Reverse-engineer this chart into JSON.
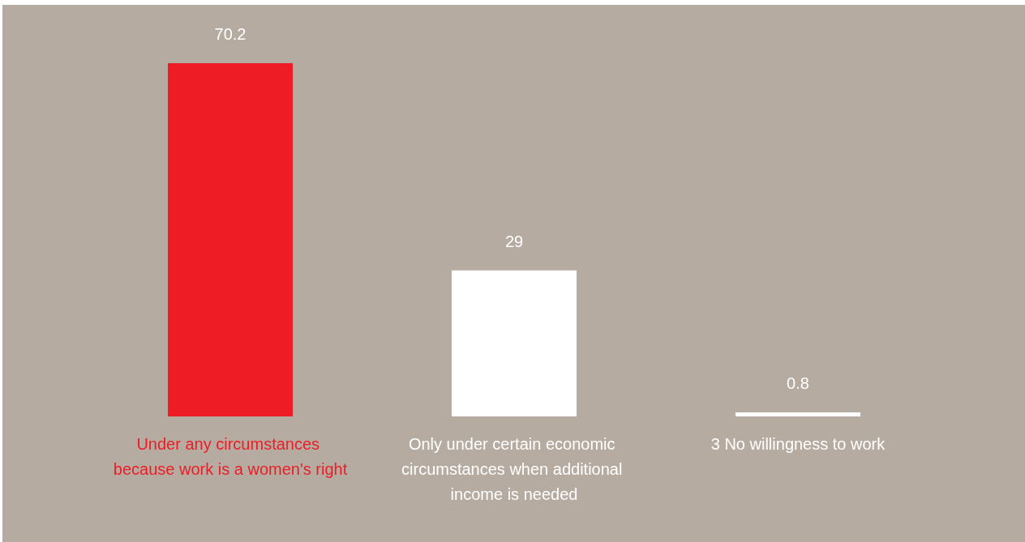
{
  "chart_data": {
    "type": "bar",
    "categories": [
      "Under any circumstances because work is a women's right",
      "Only under certain economic circumstances when additional income is needed",
      "3 No willingness to work"
    ],
    "values": [
      70.2,
      29,
      0.8
    ],
    "colors": [
      "#ee1c25",
      "#ffffff",
      "#ffffff"
    ],
    "data_labels": true
  }
}
